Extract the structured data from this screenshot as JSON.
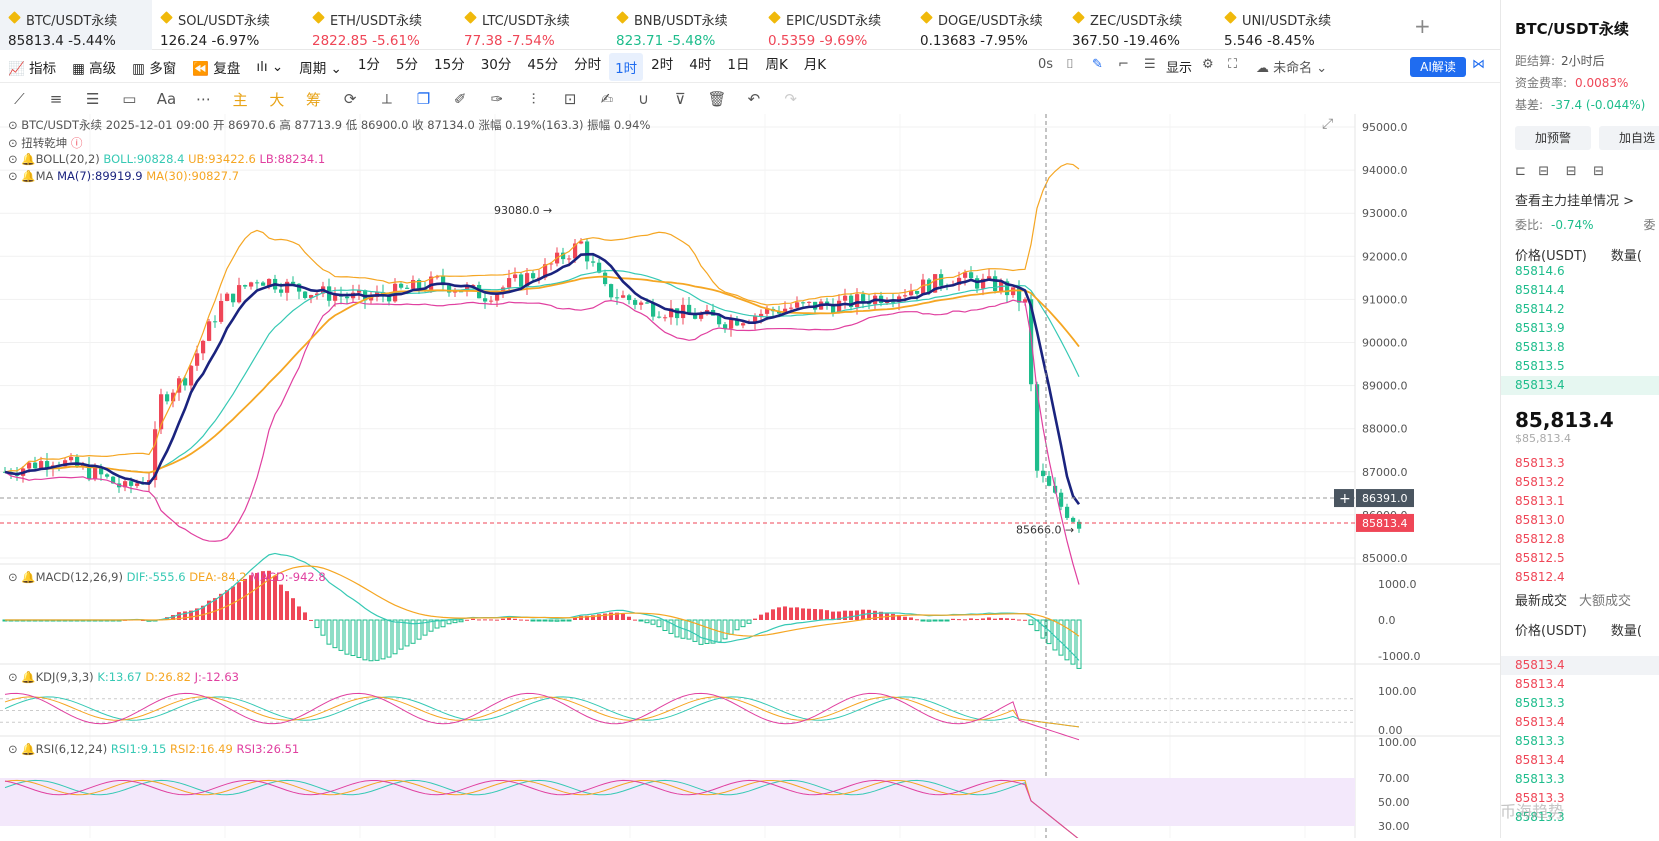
{
  "tabs": [
    {
      "name": "BTC/USDT永续",
      "price": "85813.4",
      "change": "-5.44%",
      "price_color": "neutral",
      "active": true
    },
    {
      "name": "SOL/USDT永续",
      "price": "126.24",
      "change": "-6.97%",
      "price_color": "neutral"
    },
    {
      "name": "ETH/USDT永续",
      "price": "2822.85",
      "change": "-5.61%",
      "price_color": "up"
    },
    {
      "name": "LTC/USDT永续",
      "price": "77.38",
      "change": "-7.54%",
      "price_color": "up"
    },
    {
      "name": "BNB/USDT永续",
      "price": "823.71",
      "change": "-5.48%",
      "price_color": "dn"
    },
    {
      "name": "EPIC/USDT永续",
      "price": "0.5359",
      "change": "-9.69%",
      "price_color": "up"
    },
    {
      "name": "DOGE/USDT永续",
      "price": "0.13683",
      "change": "-7.95%",
      "price_color": "neutral"
    },
    {
      "name": "ZEC/USDT永续",
      "price": "367.50",
      "change": "-19.46%",
      "price_color": "neutral"
    },
    {
      "name": "UNI/USDT永续",
      "price": "5.546",
      "change": "-8.45%",
      "price_color": "neutral"
    }
  ],
  "add_tab": "+",
  "toolbar": {
    "indicator": "指标",
    "advanced": "高级",
    "multi": "多窗",
    "replay": "复盘",
    "period": "周期",
    "intervals": [
      "1分",
      "5分",
      "15分",
      "30分",
      "45分",
      "分时",
      "1时",
      "2时",
      "4时",
      "1日",
      "周K",
      "月K"
    ],
    "selected_interval": "1时",
    "countdown": "0s",
    "display": "显示",
    "unnamed": "未命名",
    "ai": "AI解读"
  },
  "drawtools": [
    "主",
    "大",
    "筹"
  ],
  "legend": {
    "header": "BTC/USDT永续  2025-12-01 09:00  开 86970.6  高 87713.9  低 86900.0  收 87134.0  涨幅 0.19%(163.3)  振幅 0.94%",
    "pattern": "扭转乾坤",
    "boll": "BOLL(20,2)",
    "boll_mid": "BOLL:90828.4",
    "boll_ub": "UB:93422.6",
    "boll_lb": "LB:88234.1",
    "ma": "MA",
    "ma7": "MA(7):89919.9",
    "ma30": "MA(30):90827.7",
    "macd": "MACD(12,26,9)",
    "macd_dif": "DIF:-555.6",
    "macd_dea": "DEA:-84.2",
    "macd_val": "MACD:-942.8",
    "kdj": "KDJ(9,3,3)",
    "kdj_k": "K:13.67",
    "kdj_d": "D:26.82",
    "kdj_j": "J:-12.63",
    "rsi": "RSI(6,12,24)",
    "rsi1": "RSI1:9.15",
    "rsi2": "RSI2:16.49",
    "rsi3": "RSI3:26.51"
  },
  "chart_data": {
    "type": "candlestick",
    "price_axis": [
      "95000.0",
      "94000.0",
      "93000.0",
      "92000.0",
      "91000.0",
      "90000.0",
      "89000.0",
      "88000.0",
      "87000.0",
      "86000.0",
      "85000.0"
    ],
    "ylim": [
      85000,
      95000
    ],
    "high_label": "93080.0",
    "low_label": "85666.0",
    "crosshair_price": "86391.0",
    "last_price": "85813.4",
    "macd_axis": [
      "1000.0",
      "0.0",
      "-1000.0"
    ],
    "kdj_axis": [
      "100.00",
      "0.00"
    ],
    "rsi_axis": [
      "100.00",
      "70.00",
      "50.00",
      "30.00"
    ],
    "colors": {
      "up": "#ef4657",
      "down": "#1ebd8c",
      "ma7": "#1a237e",
      "ma30": "#f5a623",
      "boll": "#f5a623",
      "lb": "#e040a0",
      "mid": "#36c9b4"
    }
  },
  "side": {
    "symbol": "BTC/USDT永续",
    "settle_label": "距结算:",
    "settle_value": "2小时后",
    "funding_label": "资金费率:",
    "funding_value": "0.0083%",
    "basis_label": "基差:",
    "basis_value": "-37.4 (-0.044%)",
    "btn_alert": "加预警",
    "btn_fav": "加自选",
    "main_orders": "查看主力挂单情况 >",
    "ratio_label": "委比:",
    "ratio_value": "-0.74%",
    "ratio_extra": "委",
    "col_price": "价格(USDT)",
    "col_qty": "数量(",
    "asks": [
      "85814.6",
      "85814.4",
      "85814.2",
      "85813.9",
      "85813.8",
      "85813.5",
      "85813.4"
    ],
    "last": "85,813.4",
    "last_sub": "$85,813.4",
    "bids": [
      "85813.3",
      "85813.2",
      "85813.1",
      "85813.0",
      "85812.8",
      "85812.5",
      "85812.4"
    ],
    "trade_tab1": "最新成交",
    "trade_tab2": "大额成交",
    "trades": [
      {
        "p": "85813.4",
        "c": "b"
      },
      {
        "p": "85813.4",
        "c": "b"
      },
      {
        "p": "85813.3",
        "c": "a"
      },
      {
        "p": "85813.4",
        "c": "b"
      },
      {
        "p": "85813.3",
        "c": "a"
      },
      {
        "p": "85813.4",
        "c": "b"
      },
      {
        "p": "85813.3",
        "c": "a"
      },
      {
        "p": "85813.3",
        "c": "b"
      },
      {
        "p": "85813.3",
        "c": "a"
      }
    ]
  },
  "watermark": "币海趋势"
}
